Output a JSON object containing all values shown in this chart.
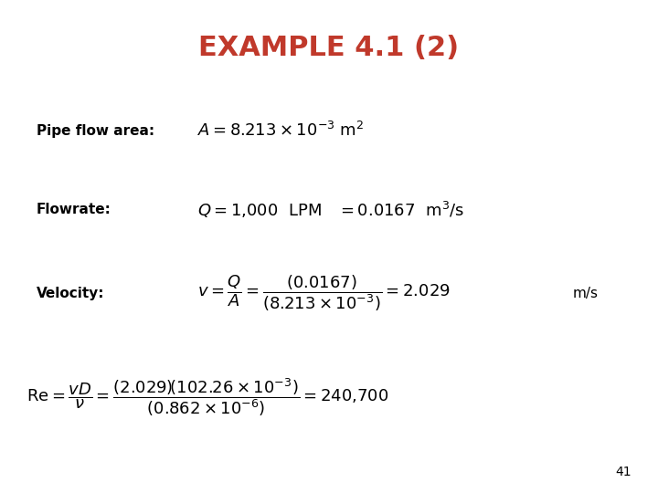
{
  "title": "EXAMPLE 4.1 (2)",
  "title_color": "#C0392B",
  "bg_color": "#FFFFFF",
  "label1": "Pipe flow area:",
  "label2": "Flowrate:",
  "label3": "Velocity:",
  "eq1": "$A = 8.213 \\times 10^{-3}$ m$^{2}$",
  "eq2": "$Q = 1{,}000$  LPM   $= 0.0167$  m$^{3}$/s",
  "eq3": "$v = \\dfrac{Q}{A} = \\dfrac{\\left(0.0167\\right)}{\\left(8.213 \\times 10^{-3}\\right)} = 2.029$",
  "eq3_unit": "m/s",
  "eq4": "$\\mathrm{Re} = \\dfrac{vD}{\\nu} = \\dfrac{\\left(2.029\\right)\\!\\left(102.26 \\times 10^{-3}\\right)}{\\left(0.862 \\times 10^{-6}\\right)} = 240{,}700$",
  "page_num": "41",
  "label_fontsize": 11,
  "eq_fontsize": 13,
  "title_fontsize": 22
}
